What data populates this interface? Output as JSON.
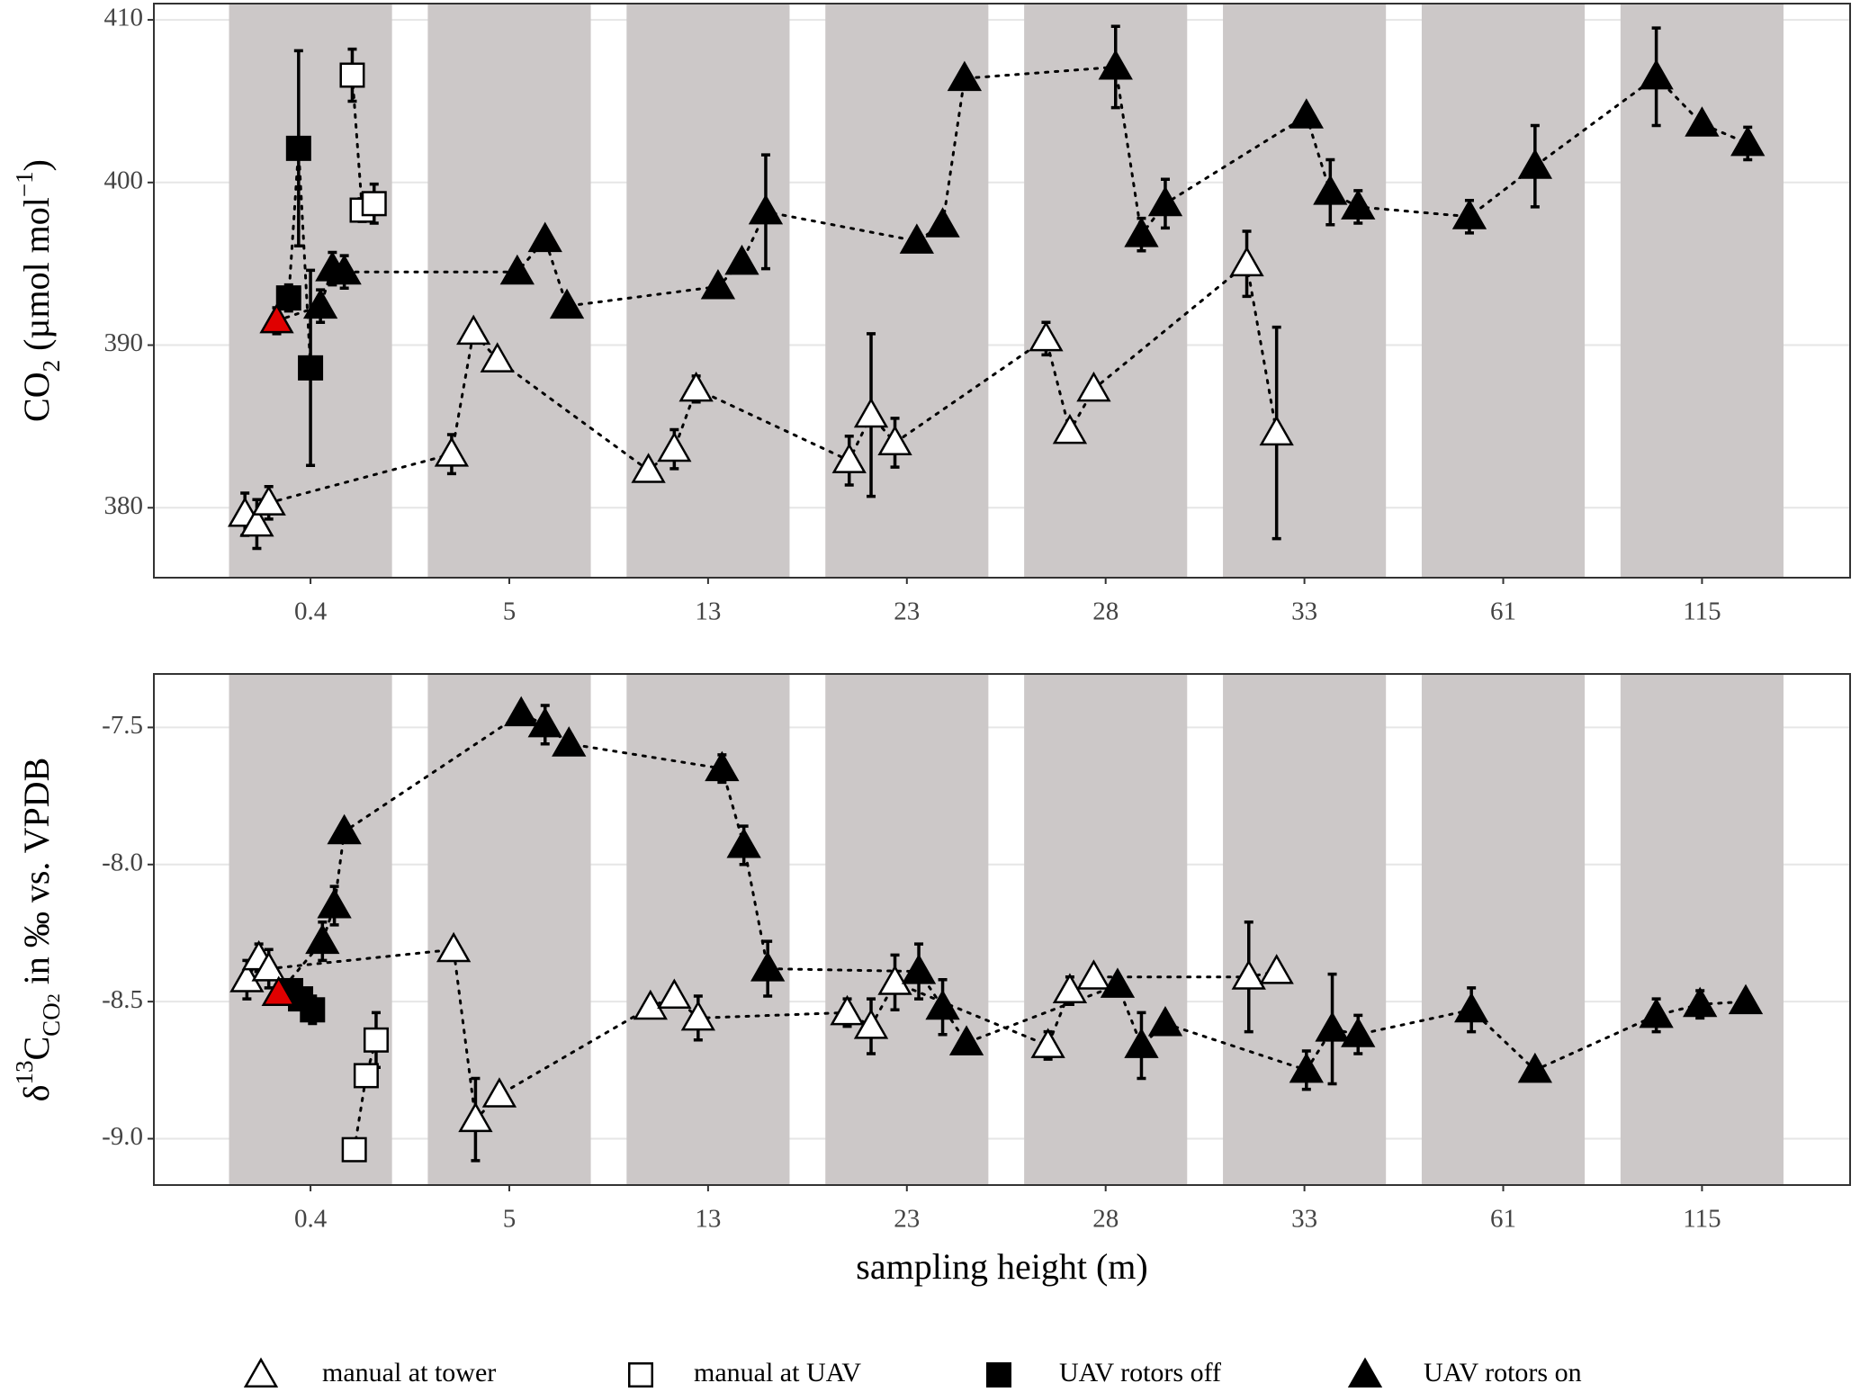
{
  "chart_data": [
    {
      "type": "scatter",
      "ylabel": [
        {
          "text": "CO"
        },
        {
          "text": "2",
          "sub": true
        },
        {
          "text": " (µmol  mol"
        },
        {
          "text": "−1",
          "sup": true
        },
        {
          "text": ")"
        }
      ],
      "ylim": [
        375.7,
        411.0
      ],
      "yticks": [
        380,
        390,
        400,
        410
      ],
      "xlim": [
        0.212,
        8.745
      ],
      "xticks": [
        {
          "value": 1,
          "label": "0.4"
        },
        {
          "value": 2,
          "label": "5"
        },
        {
          "value": 3,
          "label": "13"
        },
        {
          "value": 4,
          "label": "23"
        },
        {
          "value": 5,
          "label": "28"
        },
        {
          "value": 6,
          "label": "33"
        },
        {
          "value": 7,
          "label": "61"
        },
        {
          "value": 8,
          "label": "115"
        }
      ],
      "band_color": "#ccc8c8",
      "grid": true,
      "legend": "bottom",
      "series": [
        {
          "name": "manual at tower",
          "marker": "triangle",
          "color": "#ffffff",
          "x": [
            0.67,
            0.73,
            0.79,
            1.71,
            1.82,
            1.94,
            2.7,
            2.83,
            2.94,
            3.71,
            3.82,
            3.94,
            4.7,
            4.82,
            4.94,
            5.71,
            5.86
          ],
          "values": [
            379.6,
            379.0,
            380.3,
            383.3,
            390.8,
            389.1,
            382.3,
            383.6,
            387.3,
            382.9,
            385.7,
            384.0,
            390.4,
            384.7,
            387.3,
            395.0,
            384.6
          ],
          "errors": [
            1.3,
            1.5,
            1.0,
            1.2,
            0.5,
            0.3,
            0.3,
            1.2,
            0.8,
            1.5,
            5.0,
            1.5,
            1.0,
            0.6,
            0.3,
            2.0,
            6.5
          ]
        },
        {
          "name": "manual at UAV",
          "marker": "square",
          "color": "#ffffff",
          "x": [
            1.21,
            1.26,
            1.32
          ],
          "values": [
            406.6,
            398.3,
            398.7
          ],
          "errors": [
            1.6,
            0.7,
            1.2
          ]
        },
        {
          "name": "UAV rotors off",
          "marker": "square",
          "color": "#000000",
          "x": [
            0.89,
            0.94,
            1.0
          ],
          "values": [
            392.9,
            402.1,
            388.6
          ],
          "errors": [
            0.8,
            6.0,
            6.0
          ]
        },
        {
          "name": "UAV rotors on",
          "marker": "triangle",
          "color": "#000000",
          "colors": [
            "#e00000",
            "#000000",
            "#000000",
            "#000000",
            "#000000",
            "#000000",
            "#000000",
            "#000000",
            "#000000",
            "#000000",
            "#000000",
            "#000000",
            "#000000",
            "#000000",
            "#000000",
            "#000000",
            "#000000",
            "#000000",
            "#000000",
            "#000000",
            "#000000",
            "#000000",
            "#000000",
            "#000000"
          ],
          "x": [
            0.83,
            1.05,
            1.11,
            1.17,
            2.04,
            2.18,
            2.29,
            3.05,
            3.17,
            3.29,
            4.05,
            4.18,
            4.29,
            5.05,
            5.18,
            5.3,
            6.01,
            6.13,
            6.27,
            6.83,
            7.16,
            7.77,
            8.0,
            8.23
          ],
          "values": [
            391.5,
            392.4,
            394.7,
            394.5,
            394.5,
            396.5,
            392.4,
            393.6,
            395.1,
            398.2,
            396.4,
            397.4,
            406.4,
            407.1,
            396.8,
            398.7,
            404.1,
            399.4,
            398.5,
            397.9,
            401.0,
            406.5,
            403.6,
            402.4
          ],
          "errors": [
            0.8,
            1.0,
            1.0,
            1.0,
            0.3,
            0.3,
            0.3,
            0.3,
            0.5,
            3.5,
            0.3,
            0.5,
            0.3,
            2.5,
            1.0,
            1.5,
            0.5,
            2.0,
            1.0,
            1.0,
            2.5,
            3.0,
            0.4,
            1.0
          ]
        }
      ]
    },
    {
      "type": "scatter",
      "ylabel": [
        {
          "text": "δ"
        },
        {
          "text": "13",
          "sup": true
        },
        {
          "text": "C"
        },
        {
          "text": "CO",
          "sub": true
        },
        {
          "text": "2",
          "subsub": true
        },
        {
          "text": " in ‰ vs. VPDB"
        }
      ],
      "xlabel": "sampling height (m)",
      "ylim": [
        -9.169,
        -7.305
      ],
      "yticks": [
        {
          "value": -9.0,
          "label": "-9.0"
        },
        -8.5,
        {
          "value": -8.0,
          "label": "-8.0"
        },
        -7.5
      ],
      "xlim": [
        0.212,
        8.745
      ],
      "xticks": [
        {
          "value": 1,
          "label": "0.4"
        },
        {
          "value": 2,
          "label": "5"
        },
        {
          "value": 3,
          "label": "13"
        },
        {
          "value": 4,
          "label": "23"
        },
        {
          "value": 5,
          "label": "28"
        },
        {
          "value": 6,
          "label": "33"
        },
        {
          "value": 7,
          "label": "61"
        },
        {
          "value": 8,
          "label": "115"
        }
      ],
      "band_color": "#ccc8c8",
      "grid": true,
      "series": [
        {
          "marker": "triangle",
          "color": "#ffffff",
          "x": [
            0.68,
            0.74,
            0.79,
            1.72,
            1.83,
            1.95,
            2.71,
            2.83,
            2.95,
            3.7,
            3.82,
            3.94,
            4.71,
            4.82,
            4.94,
            5.72,
            5.86
          ],
          "values": [
            -8.42,
            -8.34,
            -8.38,
            -8.31,
            -8.93,
            -8.84,
            -8.52,
            -8.48,
            -8.56,
            -8.54,
            -8.59,
            -8.43,
            -8.66,
            -8.46,
            -8.41,
            -8.41,
            -8.39
          ],
          "errors": [
            0.07,
            0.05,
            0.07,
            0.03,
            0.15,
            0.03,
            0.03,
            0.03,
            0.08,
            0.05,
            0.1,
            0.1,
            0.05,
            0.05,
            0.03,
            0.2,
            0.03
          ]
        },
        {
          "marker": "square",
          "color": "#ffffff",
          "x": [
            1.22,
            1.28,
            1.33
          ],
          "values": [
            -9.04,
            -8.77,
            -8.64
          ],
          "errors": [
            0.03,
            0.03,
            0.1
          ]
        },
        {
          "marker": "square",
          "color": "#000000",
          "x": [
            0.9,
            0.95,
            1.01
          ],
          "values": [
            -8.46,
            -8.49,
            -8.53
          ],
          "errors": [
            0.03,
            0.03,
            0.05
          ]
        },
        {
          "marker": "triangle",
          "color": "#000000",
          "colors": [
            "#e00000",
            "#000000",
            "#000000",
            "#000000",
            "#000000",
            "#000000",
            "#000000",
            "#000000",
            "#000000",
            "#000000",
            "#000000",
            "#000000",
            "#000000",
            "#000000",
            "#000000",
            "#000000",
            "#000000",
            "#000000",
            "#000000",
            "#000000",
            "#000000",
            "#000000",
            "#000000",
            "#000000"
          ],
          "x": [
            0.84,
            1.06,
            1.12,
            1.17,
            2.06,
            2.18,
            2.3,
            3.07,
            3.18,
            3.3,
            4.06,
            4.18,
            4.3,
            5.06,
            5.18,
            5.3,
            6.01,
            6.14,
            6.27,
            6.84,
            7.16,
            7.77,
            7.99,
            8.22
          ],
          "values": [
            -8.47,
            -8.28,
            -8.15,
            -7.88,
            -7.45,
            -7.49,
            -7.56,
            -7.65,
            -7.93,
            -8.38,
            -8.39,
            -8.52,
            -8.65,
            -8.44,
            -8.66,
            -8.58,
            -8.75,
            -8.6,
            -8.62,
            -8.53,
            -8.75,
            -8.55,
            -8.51,
            -8.5
          ],
          "errors": [
            0.03,
            0.07,
            0.07,
            0.03,
            0.03,
            0.07,
            0.03,
            0.05,
            0.07,
            0.1,
            0.1,
            0.1,
            0.03,
            0.03,
            0.12,
            0.03,
            0.07,
            0.2,
            0.07,
            0.08,
            0.03,
            0.06,
            0.05,
            0.03
          ]
        }
      ]
    }
  ]
}
